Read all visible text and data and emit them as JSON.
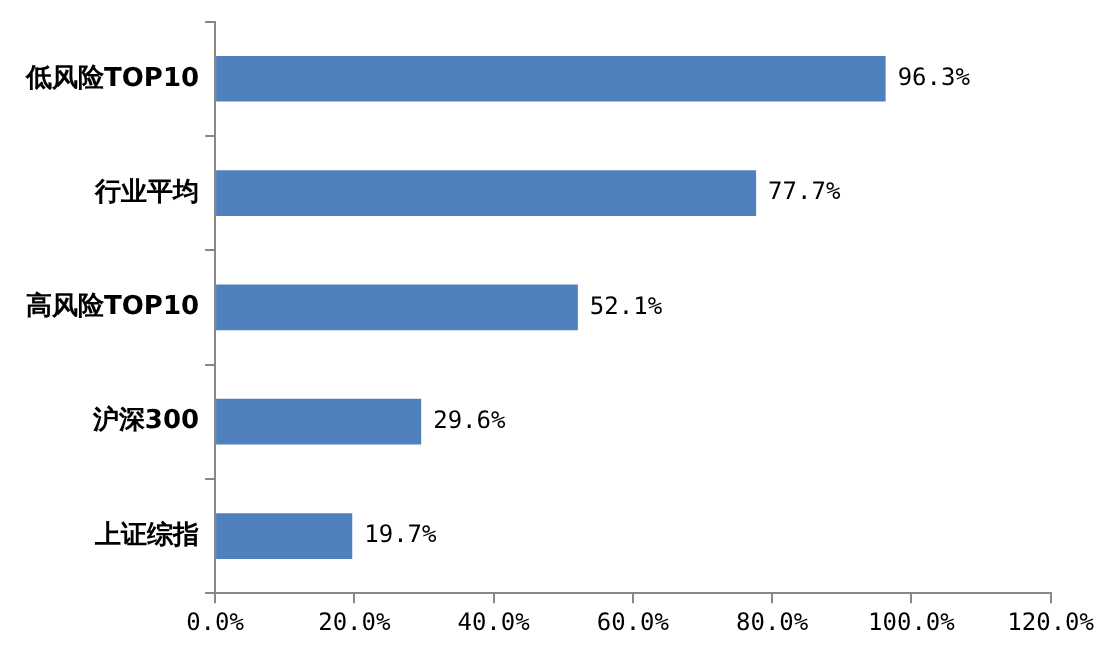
{
  "chart_data": {
    "type": "bar",
    "orientation": "horizontal",
    "categories": [
      "低风险TOP10",
      "行业平均",
      "高风险TOP10",
      "沪深300",
      "上证综指"
    ],
    "values": [
      96.3,
      77.7,
      52.1,
      29.6,
      19.7
    ],
    "color": "#4f81bd",
    "value_labels": [
      "96.3%",
      "77.7%",
      "52.1%",
      "29.6%",
      "19.7%"
    ],
    "xlim": [
      0,
      120
    ],
    "xticks": [
      {
        "value": 0,
        "label": "0.0%"
      },
      {
        "value": 20,
        "label": "20.0%"
      },
      {
        "value": 40,
        "label": "40.0%"
      },
      {
        "value": 60,
        "label": "60.0%"
      },
      {
        "value": 80,
        "label": "80.0%"
      },
      {
        "value": 100,
        "label": "100.0%"
      },
      {
        "value": 120,
        "label": "120.0%"
      }
    ],
    "grid": false,
    "legend": false
  }
}
